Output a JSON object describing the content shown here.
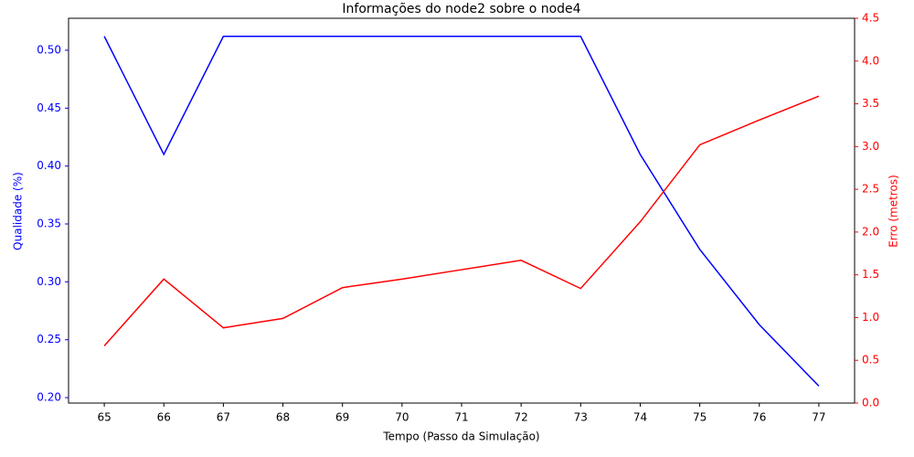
{
  "chart_data": {
    "type": "line",
    "title": "Informações do node2 sobre o node4",
    "xlabel": "Tempo (Passo da Simulação)",
    "ylabel": "Qualidade (%)",
    "y2label": "Erro (metros)",
    "ylabel_color": "#0000ff",
    "y2label_color": "#ff0000",
    "x": [
      65,
      66,
      67,
      68,
      69,
      70,
      71,
      72,
      73,
      74,
      75,
      76,
      77
    ],
    "xlim": [
      64.4,
      77.6
    ],
    "xticks": [
      65,
      66,
      67,
      68,
      69,
      70,
      71,
      72,
      73,
      74,
      75,
      76,
      77
    ],
    "ylim": [
      0.1953,
      0.5276
    ],
    "yticks": [
      {
        "value": 0.2,
        "label": "0.20"
      },
      {
        "value": 0.25,
        "label": "0.25"
      },
      {
        "value": 0.3,
        "label": "0.30"
      },
      {
        "value": 0.35,
        "label": "0.35"
      },
      {
        "value": 0.4,
        "label": "0.40"
      },
      {
        "value": 0.45,
        "label": "0.45"
      },
      {
        "value": 0.5,
        "label": "0.50"
      }
    ],
    "y2lim": [
      0,
      4.5
    ],
    "y2ticks": [
      {
        "value": 0,
        "label": "0.0"
      },
      {
        "value": 0.5,
        "label": "0.5"
      },
      {
        "value": 1,
        "label": "1.0"
      },
      {
        "value": 1.5,
        "label": "1.5"
      },
      {
        "value": 2,
        "label": "2.0"
      },
      {
        "value": 2.5,
        "label": "2.5"
      },
      {
        "value": 3,
        "label": "3.0"
      },
      {
        "value": 3.5,
        "label": "3.5"
      },
      {
        "value": 4,
        "label": "4.0"
      },
      {
        "value": 4.5,
        "label": "4.5"
      }
    ],
    "series": [
      {
        "color": "#0000ff",
        "axis": "y",
        "values": [
          0.512,
          0.41,
          0.512,
          0.512,
          0.512,
          0.512,
          0.512,
          0.512,
          0.512,
          0.41,
          0.328,
          0.263,
          0.21
        ]
      },
      {
        "color": "#ff0000",
        "axis": "y2",
        "values": [
          0.67,
          1.45,
          0.88,
          0.99,
          1.35,
          1.45,
          1.56,
          1.67,
          1.34,
          2.12,
          3.02,
          3.31,
          3.59
        ]
      }
    ]
  }
}
